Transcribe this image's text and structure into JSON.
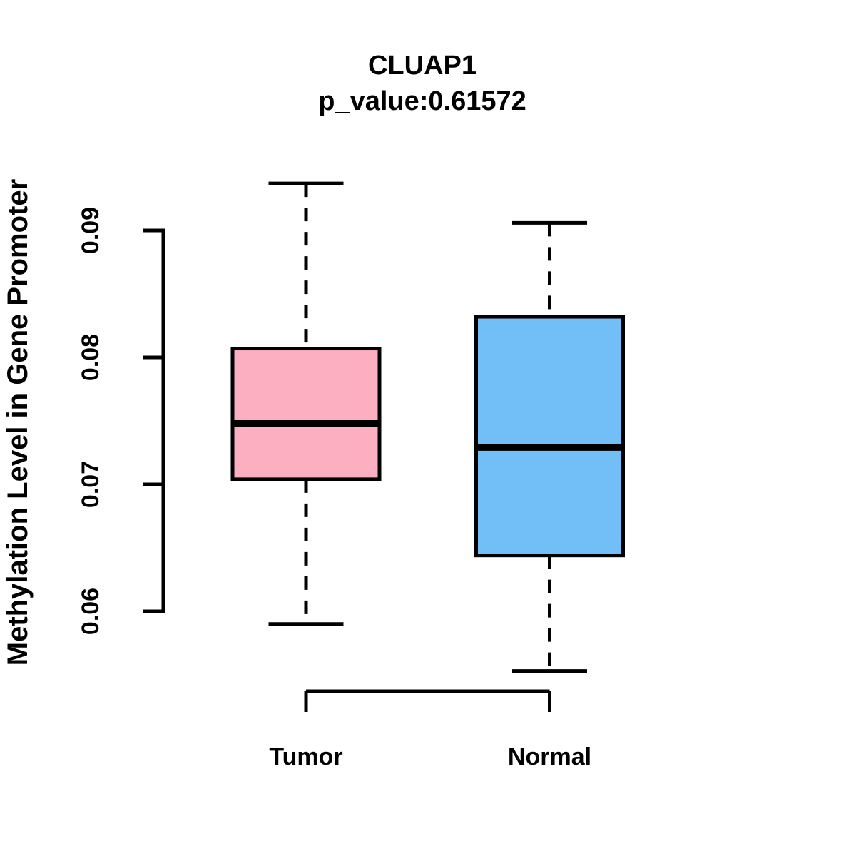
{
  "figure": {
    "title": "CLUAP1",
    "subtitle": "p_value:0.61572",
    "y_axis_label": "Methylation Level in Gene Promoter"
  },
  "chart_data": {
    "type": "boxplot",
    "title": "CLUAP1",
    "subtitle": "p_value:0.61572",
    "ylabel": "Methylation Level in Gene Promoter",
    "xlabel": "",
    "categories": [
      "Tumor",
      "Normal"
    ],
    "y_ticks": [
      {
        "value": 0.06,
        "label": "0.06"
      },
      {
        "value": 0.07,
        "label": "0.07"
      },
      {
        "value": 0.08,
        "label": "0.08"
      },
      {
        "value": 0.09,
        "label": "0.09"
      }
    ],
    "ylim": [
      0.055,
      0.095
    ],
    "grid": false,
    "legend": "none",
    "stroke_color": "#000000",
    "series": [
      {
        "name": "Tumor",
        "fill_color": "#FCAFC0",
        "stats": {
          "whisker_low": 0.059,
          "q1": 0.0704,
          "median": 0.0748,
          "q3": 0.0807,
          "whisker_high": 0.0937
        }
      },
      {
        "name": "Normal",
        "fill_color": "#72BFF7",
        "stats": {
          "whisker_low": 0.0553,
          "q1": 0.0644,
          "median": 0.0729,
          "q3": 0.0832,
          "whisker_high": 0.0906
        }
      }
    ]
  }
}
